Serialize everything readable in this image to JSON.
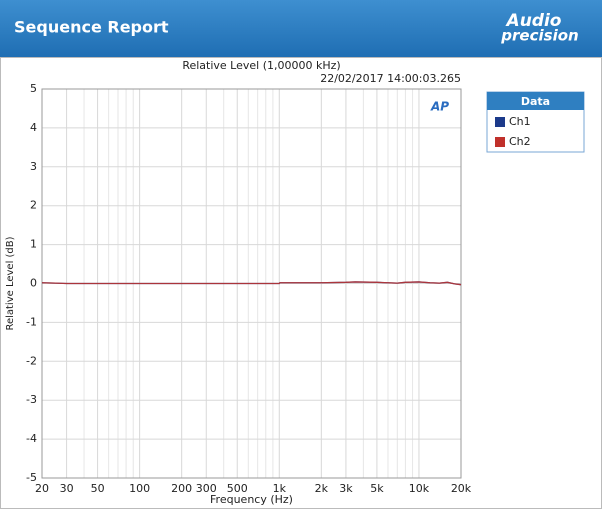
{
  "header": {
    "title": "Sequence Report",
    "logo": [
      "Audio",
      "precision"
    ]
  },
  "chart_data": {
    "type": "line",
    "title": "Relative Level (1,00000 kHz)",
    "timestamp": "22/02/2017 14:00:03.265",
    "watermark": "AP",
    "xlabel": "Frequency (Hz)",
    "ylabel": "Relative Level (dB)",
    "xscale": "log",
    "xlim": [
      20,
      20000
    ],
    "ylim": [
      -5,
      5
    ],
    "xticks": [
      20,
      30,
      50,
      100,
      200,
      300,
      500,
      {
        "value": 1000,
        "label": "1k"
      },
      {
        "value": 2000,
        "label": "2k"
      },
      {
        "value": 3000,
        "label": "3k"
      },
      {
        "value": 5000,
        "label": "5k"
      },
      {
        "value": 10000,
        "label": "10k"
      },
      {
        "value": 20000,
        "label": "20k"
      }
    ],
    "xgrid_minor": [
      40,
      60,
      70,
      80,
      90,
      400,
      600,
      700,
      800,
      900,
      4000,
      6000,
      7000,
      8000,
      9000
    ],
    "yticks": [
      5,
      4,
      3,
      2,
      1,
      0,
      -1,
      -2,
      -3,
      -4,
      -5
    ],
    "grid": true,
    "legend_title": "Data",
    "x": [
      20,
      25,
      30,
      50,
      100,
      200,
      500,
      1000,
      1010,
      2000,
      3000,
      3500,
      5000,
      6000,
      7000,
      8000,
      10000,
      12000,
      14000,
      16000,
      18000,
      20000
    ],
    "series": [
      {
        "name": "Ch1",
        "color": "#1c3a8a",
        "values": [
          0.02,
          0.01,
          0,
          0,
          0,
          0,
          0,
          0,
          0.02,
          0.02,
          0.03,
          0.04,
          0.03,
          0.02,
          0.01,
          0.03,
          0.04,
          0.02,
          0.01,
          0.03,
          -0.01,
          -0.03
        ]
      },
      {
        "name": "Ch2",
        "color": "#c0302b",
        "values": [
          0.02,
          0.01,
          0,
          0,
          0,
          0,
          0,
          0,
          0.02,
          0.02,
          0.03,
          0.04,
          0.03,
          0.02,
          0.01,
          0.03,
          0.04,
          0.02,
          0.01,
          0.03,
          -0.01,
          -0.03
        ]
      }
    ]
  }
}
